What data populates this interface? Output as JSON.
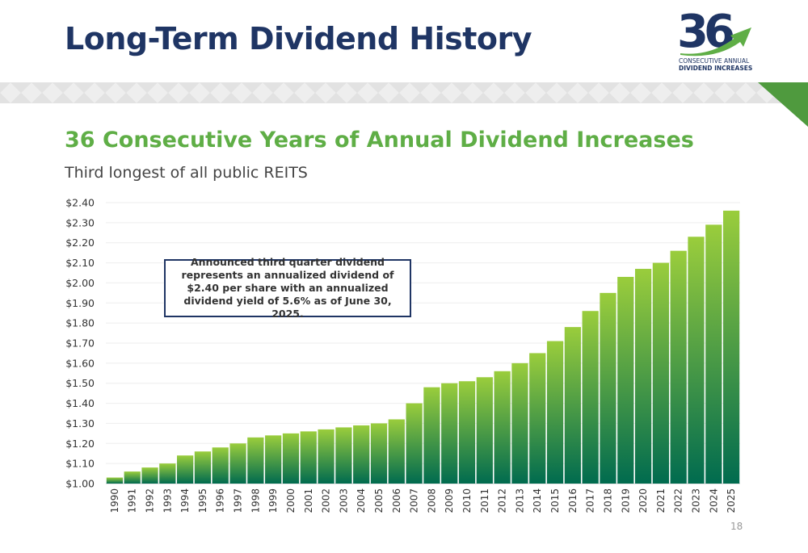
{
  "header": {
    "title": "Long-Term Dividend History"
  },
  "logo": {
    "number": "36",
    "line1": "CONSECUTIVE ANNUAL",
    "line2": "DIVIDEND INCREASES",
    "colors": {
      "navy": "#1f3564",
      "green": "#5fae46"
    }
  },
  "subtitle": "36 Consecutive Years of Annual Dividend Increases",
  "tagline": "Third longest of all public REITS",
  "callout": {
    "text": "Announced third quarter dividend represents an annualized dividend of $2.40 per share with an annualized dividend yield of 5.6% as of June 30, 2025."
  },
  "page_number": "18",
  "chart_data": {
    "type": "bar",
    "title": "",
    "xlabel": "",
    "ylabel": "",
    "ylim": [
      1.0,
      2.4
    ],
    "yticks": [
      "$1.00",
      "$1.10",
      "$1.20",
      "$1.30",
      "$1.40",
      "$1.50",
      "$1.60",
      "$1.70",
      "$1.80",
      "$1.90",
      "$2.00",
      "$2.10",
      "$2.20",
      "$2.30",
      "$2.40"
    ],
    "grid": true,
    "categories": [
      "1990",
      "1991",
      "1992",
      "1993",
      "1994",
      "1995",
      "1996",
      "1997",
      "1998",
      "1999",
      "2000",
      "2001",
      "2002",
      "2003",
      "2004",
      "2005",
      "2006",
      "2007",
      "2008",
      "2009",
      "2010",
      "2011",
      "2012",
      "2013",
      "2014",
      "2015",
      "2016",
      "2017",
      "2018",
      "2019",
      "2020",
      "2021",
      "2022",
      "2023",
      "2024",
      "2025"
    ],
    "values": [
      1.03,
      1.06,
      1.08,
      1.1,
      1.14,
      1.16,
      1.18,
      1.2,
      1.23,
      1.24,
      1.25,
      1.26,
      1.27,
      1.28,
      1.29,
      1.3,
      1.32,
      1.4,
      1.48,
      1.5,
      1.51,
      1.53,
      1.56,
      1.6,
      1.65,
      1.71,
      1.78,
      1.86,
      1.95,
      2.03,
      2.07,
      2.1,
      2.16,
      2.23,
      2.29,
      2.36
    ],
    "bar_color_top": "#9acd3c",
    "bar_color_bottom": "#006b4f"
  }
}
